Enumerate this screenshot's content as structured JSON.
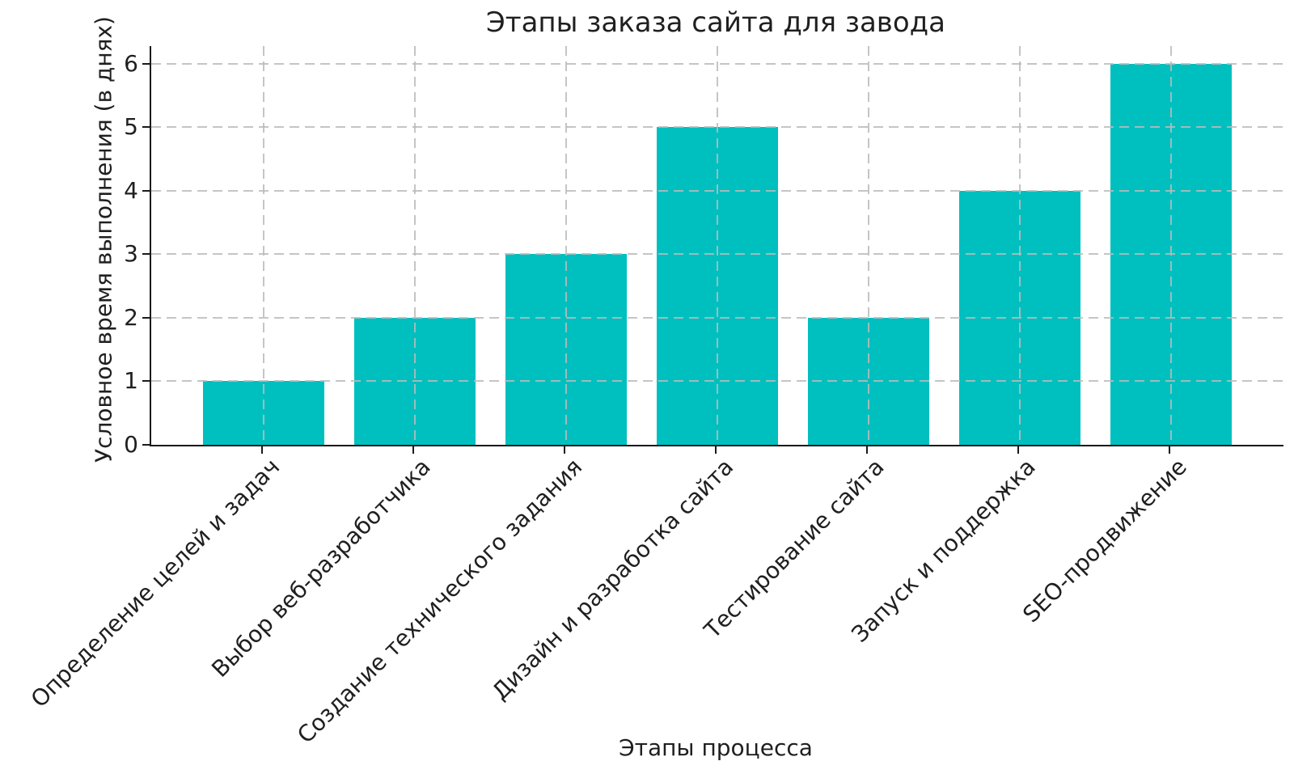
{
  "chart_data": {
    "type": "bar",
    "title": "Этапы заказа сайта для завода",
    "xlabel": "Этапы процесса",
    "ylabel": "Условное время выполнения (в днях)",
    "categories": [
      "Определение целей и задач",
      "Выбор веб-разработчика",
      "Создание технического задания",
      "Дизайн и разработка сайта",
      "Тестирование сайта",
      "Запуск и поддержка",
      "SEO-продвижение"
    ],
    "values": [
      1,
      2,
      3,
      5,
      2,
      4,
      6
    ],
    "yticks": [
      0,
      1,
      2,
      3,
      4,
      5,
      6
    ],
    "ylim": [
      0,
      6.3
    ],
    "bar_color": "#00BFBF",
    "grid": {
      "visible": true,
      "style": "dashed",
      "axes": "both",
      "color": "#bbbbbb"
    },
    "legend": "none",
    "x_tick_rotation_deg": 45
  }
}
